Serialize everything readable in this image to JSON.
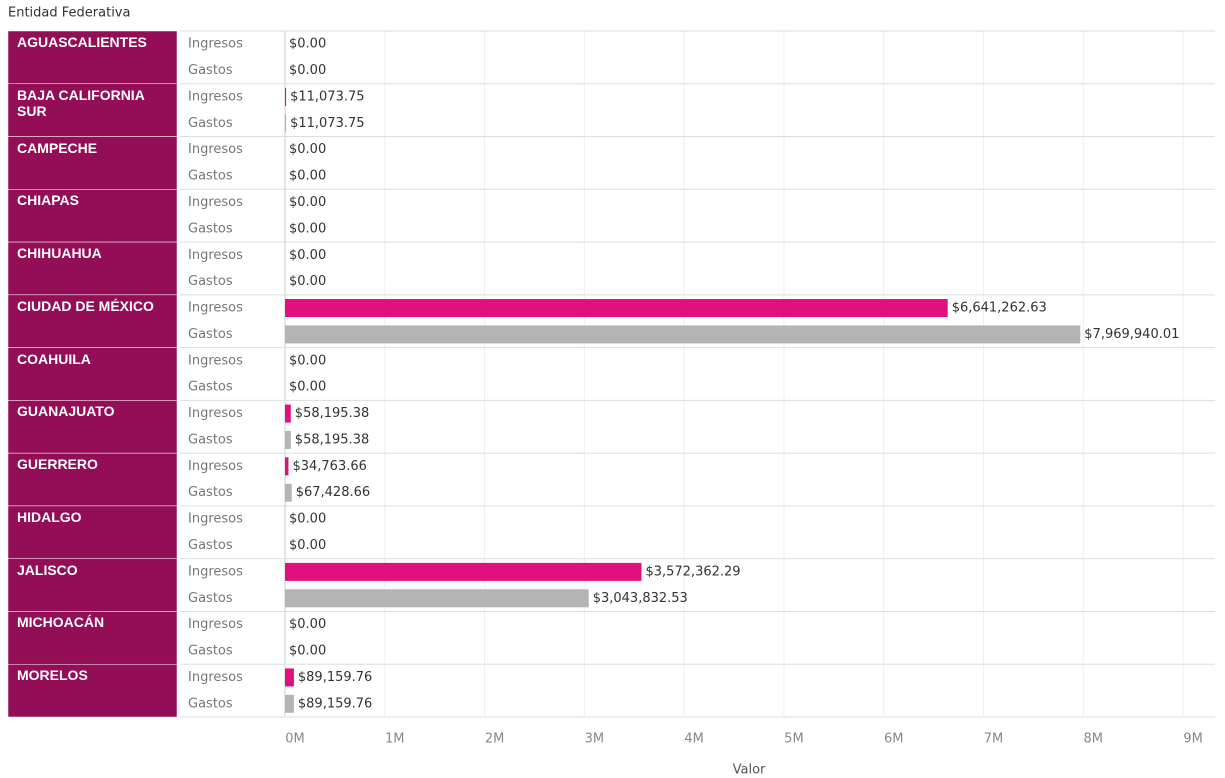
{
  "chart_data": {
    "type": "bar",
    "orientation": "horizontal",
    "header": "Entidad Federativa",
    "x_label": "Valor",
    "categories": [
      "AGUASCALIENTES",
      "BAJA CALIFORNIA SUR",
      "CAMPECHE",
      "CHIAPAS",
      "CHIHUAHUA",
      "CIUDAD DE MÉXICO",
      "COAHUILA",
      "GUANAJUATO",
      "GUERRERO",
      "HIDALGO",
      "JALISCO",
      "MICHOACÁN",
      "MORELOS"
    ],
    "category_color": "#930d57",
    "series": [
      {
        "name": "Ingresos",
        "color": "#e0117f",
        "values": [
          0,
          11073.75,
          0,
          0,
          0,
          6641262.63,
          0,
          58195.38,
          34763.66,
          0,
          3572362.29,
          0,
          89159.76
        ],
        "value_labels": [
          "$0.00",
          "$11,073.75",
          "$0.00",
          "$0.00",
          "$0.00",
          "$6,641,262.63",
          "$0.00",
          "$58,195.38",
          "$34,763.66",
          "$0.00",
          "$3,572,362.29",
          "$0.00",
          "$89,159.76"
        ]
      },
      {
        "name": "Gastos",
        "color": "#b4b4b4",
        "values": [
          0,
          11073.75,
          0,
          0,
          0,
          7969940.01,
          0,
          58195.38,
          67428.66,
          0,
          3043832.53,
          0,
          89159.76
        ],
        "value_labels": [
          "$0.00",
          "$11,073.75",
          "$0.00",
          "$0.00",
          "$0.00",
          "$7,969,940.01",
          "$0.00",
          "$58,195.38",
          "$67,428.66",
          "$0.00",
          "$3,043,832.53",
          "$0.00",
          "$89,159.76"
        ]
      }
    ],
    "xlim": [
      0,
      9320000
    ],
    "xticks": [
      {
        "value": 0,
        "label": "0M"
      },
      {
        "value": 1000000,
        "label": "1M"
      },
      {
        "value": 2000000,
        "label": "2M"
      },
      {
        "value": 3000000,
        "label": "3M"
      },
      {
        "value": 4000000,
        "label": "4M"
      },
      {
        "value": 5000000,
        "label": "5M"
      },
      {
        "value": 6000000,
        "label": "6M"
      },
      {
        "value": 7000000,
        "label": "7M"
      },
      {
        "value": 8000000,
        "label": "8M"
      },
      {
        "value": 9000000,
        "label": "9M"
      }
    ],
    "grid": true
  }
}
